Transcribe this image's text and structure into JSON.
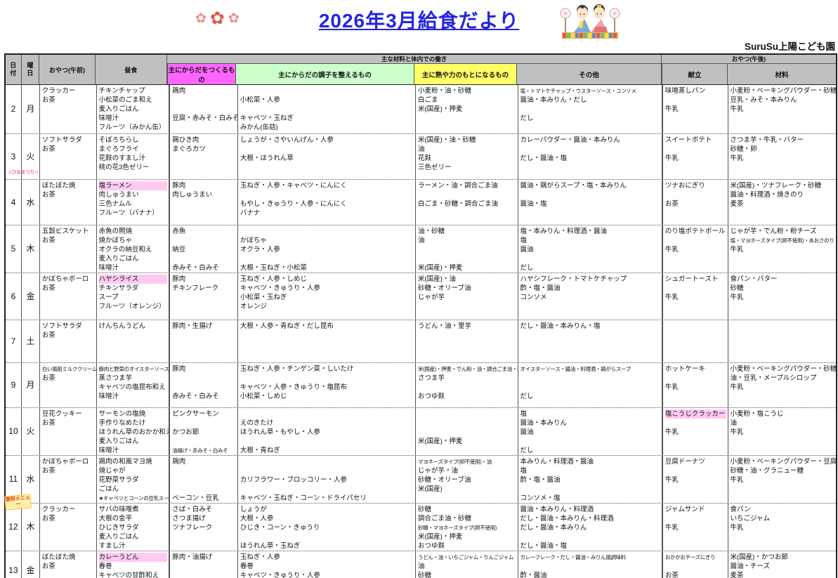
{
  "title": "2026年3月給食だより",
  "org": "SuruSu上陽こども園",
  "icons": {
    "left_of_title": "plum-blossom-icon",
    "right_of_title": "hina-dolls-icon"
  },
  "colors": {
    "title_blue": "#2525DD",
    "header_gray": "#C0C0C0",
    "build_magenta": "#FF66FF",
    "regulate_green": "#CCFFCC",
    "energy_yellow": "#FFFF66",
    "highlight_pink": "#FFC9F2",
    "hina_note_pink": "#F0649B",
    "fukkoku_red": "#E8380D"
  },
  "header": {
    "date": "日付",
    "day": "曜日",
    "snack_am": "おやつ(午前)",
    "lunch": "昼食",
    "nutrition_group": "主な材料と体内での働き",
    "build": "主にからだをつくるもの",
    "regulate": "主にからだの調子を整えるもの",
    "energy": "主に熱や力のもとになるもの",
    "other": "その他",
    "snack_pm_group": "おやつ(午後)",
    "menu": "献立",
    "ingredients": "材料"
  },
  "rows": [
    {
      "date": "2",
      "day": "月",
      "snack_am": "クラッカー\nお茶",
      "lunch": "チキンチャップ\n小松菜のごま和え\n麦入りごはん\n味噌汁\nフルーツ（みかん缶）",
      "build": "鶏肉\n\n\n豆腐・赤みそ・白みそ",
      "regulate": "\n小松菜・人参\n\nキャベツ・玉ねぎ\nみかん(缶詰)",
      "energy": "小麦粉・油・砂糖\n白ごま\n米(国産)・押麦",
      "other": "塩・トマトケチャップ・ウスターソース・コンソメ\n醤油・本みりん・だし\n\nだし",
      "menu_pm": "味噌蒸しパン\n\n牛乳",
      "ingredients_pm": "小麦粉・ベーキングパウダー・砂糖\n豆乳・みそ・本みりん\n牛乳"
    },
    {
      "date": "3",
      "day": "火",
      "note": {
        "type": "hina",
        "text": "ひなまつり"
      },
      "snack_am": "ソフトサラダ\nお茶",
      "lunch": "そぼろちらし\nまぐろフライ\n花麩のすまし汁\n桃の花3色ゼリー",
      "build": "鶏ひき肉\nまぐろカツ",
      "regulate": "しょうが・さやいんげん・人参\n\n大根・ほうれん草",
      "energy": "米(国産)・油・砂糖\n油\n花麩\n三色ゼリー",
      "other": "カレーパウダー・醤油・本みりん\n\nだし・醤油・塩",
      "menu_pm": "スイートポテト\n\n牛乳",
      "ingredients_pm": "さつま芋・牛乳・バター\n砂糖・卵\n牛乳"
    },
    {
      "date": "4",
      "day": "水",
      "snack_am": "ぼたぼた焼\nお茶",
      "lunch_hl": "塩ラーメン",
      "lunch": "肉しゅうまい\n三色ナムル\nフルーツ（バナナ）",
      "build": "豚肉\n肉しゅうまい",
      "regulate": "玉ねぎ・人参・キャベツ・にんにく\n\nもやし・きゅうり・人参・にんにく\nバナナ",
      "energy": "ラーメン・油・調合ごま油\n\n白ごま・砂糖・調合ごま油",
      "other": "醤油・鶏がらスープ・塩・本みりん\n\n醤油・塩",
      "menu_pm": "ツナおにぎり\n\nお茶",
      "ingredients_pm": "米(国産)・ツナフレーク・砂糖\n醤油・料理酒・焼きのり\n麦茶"
    },
    {
      "date": "5",
      "day": "木",
      "snack_am": "五穀ビスケット\nお茶",
      "lunch": "赤魚の照焼\n焼かぼちゃ\nオクラの納豆和え\n麦入りごはん\n味噌汁",
      "build": "赤魚\n\n納豆\n\n赤みそ・白みそ",
      "regulate": "\nかぼちゃ\nオクラ・人参\n\n大根・玉ねぎ・小松菜",
      "energy": "油・砂糖\n油\n\n\n米(国産)・押麦",
      "other": "塩・本みりん・料理酒・醤油\n塩\n醤油\n\nだし",
      "menu_pm": "のり塩ポテトボール\n\n牛乳",
      "ingredients_pm": "じゃが芋・でん粉・粉チーズ\n塩・マヨネーズタイプ(卵不使用)・あおさのり\n牛乳"
    },
    {
      "date": "6",
      "day": "金",
      "snack_am": "かぼちゃボーロ\nお茶",
      "lunch_hl": "ハヤシライス",
      "lunch": "チキンサラダ\nスープ\nフルーツ（オレンジ）",
      "build": "豚肉\nチキンフレーク",
      "regulate": "玉ねぎ・人参・しめじ\nキャベツ・きゅうり・人参\n小松菜・玉ねぎ\nオレンジ",
      "energy": "米(国産)・油\n砂糖・オリーブ油\nじゃが芋",
      "other": "ハヤシフレーク・トマトケチャップ\n酢・塩・醤油\nコンソメ",
      "menu_pm": "シュガートースト\n\n牛乳",
      "ingredients_pm": "食パン・バター\n砂糖\n牛乳"
    },
    {
      "date": "7",
      "day": "土",
      "snack_am": "ソフトサラダ\nお茶",
      "lunch": "けんちんうどん",
      "build": "豚肉・生揚げ",
      "regulate": "大根・人参・青ねぎ・だし昆布",
      "energy": "うどん・油・里芋",
      "other": "だし・醤油・本みりん・塩",
      "menu_pm": "",
      "ingredients_pm": ""
    },
    {
      "date": "9",
      "day": "月",
      "snack_am": "白い風船ミルククリーム\nお茶",
      "lunch": "豚肉と野菜のオイスターソース丼\n蒸さつま芋\nキャベツの塩昆布和え\n味噌汁",
      "build": "豚肉\n\n\n赤みそ・白みそ",
      "regulate": "玉ねぎ・人参・チンゲン菜・しいたけ\n\nキャベツ・人参・きゅうり・塩昆布\n小松菜・しめじ",
      "energy": "米(国産)・押麦・でん粉・油・調合ごま油・砂糖\nさつま芋\n\nおつゆ麩",
      "other": "オイスターソース・醤油・料理酒・鶏がらスープ\n\n\nだし",
      "menu_pm": "ホットケーキ\n\n牛乳",
      "ingredients_pm": "小麦粉・ベーキングパウダー・砂糖\n油・豆乳・メープルシロップ\n牛乳"
    },
    {
      "date": "10",
      "day": "火",
      "snack_am": "豆花クッキー\nお茶",
      "lunch": "サーモンの塩焼\n手作りなめたけ\nほうれん草のおかか和え\n麦入りごはん\n味噌汁",
      "build": "ピンクサーモン\n\nかつお節\n\n油揚げ・赤みそ・白みそ",
      "regulate": "\nえのきたけ\nほうれん草・もやし・人参\n\n大根・青ねぎ",
      "energy": "\n\n\n米(国産)・押麦",
      "other": "塩\n醤油・本みりん\n醤油\n\nだし",
      "menu_pm_hl": "塩こうじクラッカー",
      "menu_pm": "\n牛乳",
      "ingredients_pm": "小麦粉・塩こうじ\n油\n牛乳"
    },
    {
      "date": "11",
      "day": "水",
      "note": {
        "type": "fukkoku",
        "text": "復刻メニュー"
      },
      "snack_am": "かぼちゃボーロ\nお茶",
      "lunch": "鶏肉の和風マヨ焼\n焼じゃが\n花野菜サラダ\nごはん\n★キャベツとコーンの豆乳スープ",
      "build": "鶏肉\n\n\n\nベーコン・豆乳",
      "regulate": "\n\nカリフラワー・ブロッコリー・人参\n\nキャベツ・玉ねぎ・コーン・ドライパセリ",
      "energy": "マヨネーズタイプ(卵不使用)・油\nじゃが芋・油\n砂糖・オリーブ油\n米(国産)",
      "other": "本みりん・料理酒・醤油\n塩\n酢・塩・醤油\n\nコンソメ・塩",
      "menu_pm": "豆腐ドーナツ\n\n牛乳",
      "ingredients_pm": "小麦粉・ベーキングパウダー・豆腐\n砂糖・油・グラニュー糖\n牛乳"
    },
    {
      "date": "12",
      "day": "木",
      "snack_am": "クラッカー\nお茶",
      "lunch": "サバの味噌煮\n大根の金平\nひじきサラダ\n麦入りごはん\nすまし汁",
      "build": "さば・白みそ\nさつま揚げ\nツナフレーク",
      "regulate": "しょうが\n大根・人参\nひじき・コーン・きゅうり\n\nほうれん草・玉ねぎ",
      "energy": "砂糖\n調合ごま油・砂糖\n砂糖・マヨネーズタイプ(卵不使用)\n米(国産)・押麦\nおつゆ麩",
      "other": "醤油・本みりん・料理酒\nだし・醤油・本みりん・料理酒\nだし・醤油・本みりん\n\nだし・醤油・塩",
      "menu_pm": "ジャムサンド\n\n牛乳",
      "ingredients_pm": "食パン\nいちごジャム\n牛乳"
    },
    {
      "date": "13",
      "day": "金",
      "snack_am": "ぼたぼた焼\nお茶",
      "lunch_hl": "カレーうどん",
      "lunch": "春巻\nキャベツの甘酢和え\nフルーツ（グレープフルーツ）",
      "build": "豚肉・油揚げ",
      "regulate": "玉ねぎ・人参\n春巻\nキャベツ・きゅうり・人参\nグレープフルーツルビー",
      "energy": "うどん・油・いちごジャム・りんごジャム\n油\n砂糖",
      "other": "カレーフレーク・だし・醤油・みりん風調味料\n\n酢・醤油",
      "menu_pm": "おかかおチーズにぎり\n\nお茶",
      "ingredients_pm": "米(国産)・かつお節\n醤油・チーズ\n麦茶"
    }
  ]
}
